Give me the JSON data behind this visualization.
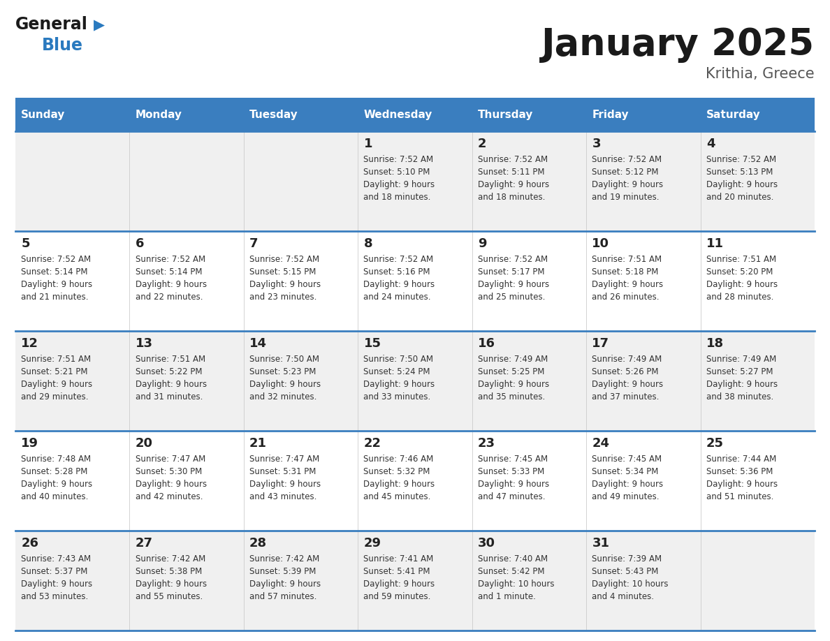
{
  "title": "January 2025",
  "subtitle": "Krithia, Greece",
  "days_of_week": [
    "Sunday",
    "Monday",
    "Tuesday",
    "Wednesday",
    "Thursday",
    "Friday",
    "Saturday"
  ],
  "header_bg": "#3a7ebf",
  "header_text_color": "#ffffff",
  "row_bg_odd": "#f0f0f0",
  "row_bg_even": "#ffffff",
  "cell_text_color": "#333333",
  "day_number_color": "#222222",
  "separator_color": "#3a7ebf",
  "logo_general_color": "#1a1a1a",
  "logo_blue_color": "#2a7abf",
  "weeks": [
    {
      "days": [
        {
          "day": null,
          "info": null
        },
        {
          "day": null,
          "info": null
        },
        {
          "day": null,
          "info": null
        },
        {
          "day": 1,
          "info": "Sunrise: 7:52 AM\nSunset: 5:10 PM\nDaylight: 9 hours\nand 18 minutes."
        },
        {
          "day": 2,
          "info": "Sunrise: 7:52 AM\nSunset: 5:11 PM\nDaylight: 9 hours\nand 18 minutes."
        },
        {
          "day": 3,
          "info": "Sunrise: 7:52 AM\nSunset: 5:12 PM\nDaylight: 9 hours\nand 19 minutes."
        },
        {
          "day": 4,
          "info": "Sunrise: 7:52 AM\nSunset: 5:13 PM\nDaylight: 9 hours\nand 20 minutes."
        }
      ]
    },
    {
      "days": [
        {
          "day": 5,
          "info": "Sunrise: 7:52 AM\nSunset: 5:14 PM\nDaylight: 9 hours\nand 21 minutes."
        },
        {
          "day": 6,
          "info": "Sunrise: 7:52 AM\nSunset: 5:14 PM\nDaylight: 9 hours\nand 22 minutes."
        },
        {
          "day": 7,
          "info": "Sunrise: 7:52 AM\nSunset: 5:15 PM\nDaylight: 9 hours\nand 23 minutes."
        },
        {
          "day": 8,
          "info": "Sunrise: 7:52 AM\nSunset: 5:16 PM\nDaylight: 9 hours\nand 24 minutes."
        },
        {
          "day": 9,
          "info": "Sunrise: 7:52 AM\nSunset: 5:17 PM\nDaylight: 9 hours\nand 25 minutes."
        },
        {
          "day": 10,
          "info": "Sunrise: 7:51 AM\nSunset: 5:18 PM\nDaylight: 9 hours\nand 26 minutes."
        },
        {
          "day": 11,
          "info": "Sunrise: 7:51 AM\nSunset: 5:20 PM\nDaylight: 9 hours\nand 28 minutes."
        }
      ]
    },
    {
      "days": [
        {
          "day": 12,
          "info": "Sunrise: 7:51 AM\nSunset: 5:21 PM\nDaylight: 9 hours\nand 29 minutes."
        },
        {
          "day": 13,
          "info": "Sunrise: 7:51 AM\nSunset: 5:22 PM\nDaylight: 9 hours\nand 31 minutes."
        },
        {
          "day": 14,
          "info": "Sunrise: 7:50 AM\nSunset: 5:23 PM\nDaylight: 9 hours\nand 32 minutes."
        },
        {
          "day": 15,
          "info": "Sunrise: 7:50 AM\nSunset: 5:24 PM\nDaylight: 9 hours\nand 33 minutes."
        },
        {
          "day": 16,
          "info": "Sunrise: 7:49 AM\nSunset: 5:25 PM\nDaylight: 9 hours\nand 35 minutes."
        },
        {
          "day": 17,
          "info": "Sunrise: 7:49 AM\nSunset: 5:26 PM\nDaylight: 9 hours\nand 37 minutes."
        },
        {
          "day": 18,
          "info": "Sunrise: 7:49 AM\nSunset: 5:27 PM\nDaylight: 9 hours\nand 38 minutes."
        }
      ]
    },
    {
      "days": [
        {
          "day": 19,
          "info": "Sunrise: 7:48 AM\nSunset: 5:28 PM\nDaylight: 9 hours\nand 40 minutes."
        },
        {
          "day": 20,
          "info": "Sunrise: 7:47 AM\nSunset: 5:30 PM\nDaylight: 9 hours\nand 42 minutes."
        },
        {
          "day": 21,
          "info": "Sunrise: 7:47 AM\nSunset: 5:31 PM\nDaylight: 9 hours\nand 43 minutes."
        },
        {
          "day": 22,
          "info": "Sunrise: 7:46 AM\nSunset: 5:32 PM\nDaylight: 9 hours\nand 45 minutes."
        },
        {
          "day": 23,
          "info": "Sunrise: 7:45 AM\nSunset: 5:33 PM\nDaylight: 9 hours\nand 47 minutes."
        },
        {
          "day": 24,
          "info": "Sunrise: 7:45 AM\nSunset: 5:34 PM\nDaylight: 9 hours\nand 49 minutes."
        },
        {
          "day": 25,
          "info": "Sunrise: 7:44 AM\nSunset: 5:36 PM\nDaylight: 9 hours\nand 51 minutes."
        }
      ]
    },
    {
      "days": [
        {
          "day": 26,
          "info": "Sunrise: 7:43 AM\nSunset: 5:37 PM\nDaylight: 9 hours\nand 53 minutes."
        },
        {
          "day": 27,
          "info": "Sunrise: 7:42 AM\nSunset: 5:38 PM\nDaylight: 9 hours\nand 55 minutes."
        },
        {
          "day": 28,
          "info": "Sunrise: 7:42 AM\nSunset: 5:39 PM\nDaylight: 9 hours\nand 57 minutes."
        },
        {
          "day": 29,
          "info": "Sunrise: 7:41 AM\nSunset: 5:41 PM\nDaylight: 9 hours\nand 59 minutes."
        },
        {
          "day": 30,
          "info": "Sunrise: 7:40 AM\nSunset: 5:42 PM\nDaylight: 10 hours\nand 1 minute."
        },
        {
          "day": 31,
          "info": "Sunrise: 7:39 AM\nSunset: 5:43 PM\nDaylight: 10 hours\nand 4 minutes."
        },
        {
          "day": null,
          "info": null
        }
      ]
    }
  ]
}
